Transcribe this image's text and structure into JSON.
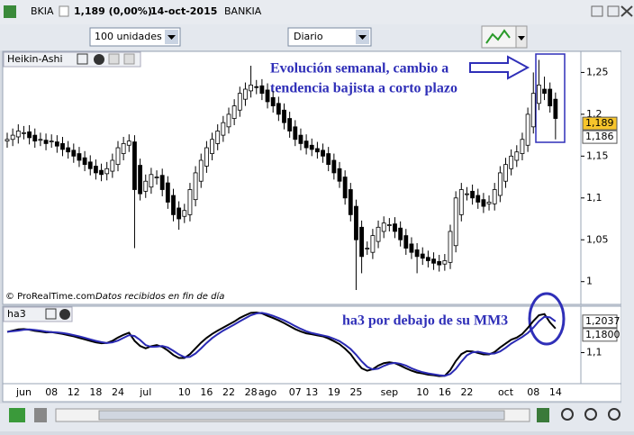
{
  "window": {
    "symbol": "BKIA",
    "quote": "1,189 (0,00%)",
    "date": "14-oct-2015",
    "name": "BANKIA",
    "quantity": "100 unidades",
    "period": "Diario"
  },
  "chart_data": [
    {
      "type": "candlestick",
      "title": "Heikin-Ashi",
      "source": "© ProRealTime.com",
      "note": "Datos recibidos en fin de día",
      "annotations": [
        "Evolución semanal, cambio a",
        "tendencia bajista a corto plazo"
      ],
      "categories": [
        null,
        null,
        null,
        "jun",
        null,
        null,
        null,
        null,
        "08",
        null,
        null,
        null,
        "12",
        null,
        null,
        null,
        "18",
        null,
        null,
        null,
        "24",
        null,
        null,
        null,
        null,
        "jul",
        null,
        null,
        null,
        null,
        null,
        null,
        "10",
        null,
        null,
        null,
        "16",
        null,
        null,
        null,
        "22",
        null,
        null,
        null,
        "28",
        null,
        null,
        "ago",
        null,
        null,
        null,
        null,
        "07",
        null,
        null,
        "13",
        null,
        null,
        null,
        "19",
        null,
        null,
        null,
        "25",
        null,
        null,
        null,
        null,
        null,
        "sep",
        null,
        null,
        null,
        null,
        null,
        "10",
        null,
        null,
        null,
        "16",
        null,
        null,
        null,
        "22",
        null,
        null,
        null,
        null,
        null,
        null,
        "oct",
        null,
        null,
        null,
        null,
        "08",
        null,
        null,
        null,
        "14"
      ],
      "open": [
        1.168,
        1.17,
        1.173,
        1.178,
        1.179,
        1.175,
        1.17,
        1.169,
        1.168,
        1.167,
        1.165,
        1.16,
        1.157,
        1.153,
        1.148,
        1.143,
        1.138,
        1.133,
        1.129,
        1.132,
        1.14,
        1.153,
        1.163,
        1.167,
        1.139,
        1.108,
        1.113,
        1.124,
        1.127,
        1.118,
        1.103,
        1.088,
        1.078,
        1.08,
        1.098,
        1.12,
        1.138,
        1.153,
        1.165,
        1.175,
        1.185,
        1.195,
        1.205,
        1.218,
        1.228,
        1.233,
        1.234,
        1.229,
        1.22,
        1.213,
        1.205,
        1.195,
        1.185,
        1.175,
        1.168,
        1.163,
        1.159,
        1.157,
        1.153,
        1.145,
        1.135,
        1.125,
        1.11,
        1.09,
        1.065,
        1.04,
        1.035,
        1.048,
        1.06,
        1.068,
        1.069,
        1.064,
        1.055,
        1.045,
        1.038,
        1.033,
        1.029,
        1.027,
        1.024,
        1.021,
        1.023,
        1.043,
        1.08,
        1.105,
        1.108,
        1.103,
        1.098,
        1.093,
        1.093,
        1.103,
        1.12,
        1.135,
        1.145,
        1.153,
        1.163,
        1.185,
        1.213,
        1.23,
        1.23,
        1.218
      ],
      "high": [
        1.178,
        1.183,
        1.188,
        1.186,
        1.187,
        1.183,
        1.178,
        1.177,
        1.176,
        1.175,
        1.173,
        1.168,
        1.165,
        1.161,
        1.156,
        1.151,
        1.146,
        1.141,
        1.143,
        1.153,
        1.168,
        1.173,
        1.176,
        1.175,
        1.147,
        1.128,
        1.136,
        1.133,
        1.135,
        1.126,
        1.111,
        1.096,
        1.093,
        1.118,
        1.138,
        1.153,
        1.168,
        1.178,
        1.188,
        1.198,
        1.208,
        1.218,
        1.233,
        1.238,
        1.258,
        1.241,
        1.242,
        1.237,
        1.228,
        1.221,
        1.213,
        1.203,
        1.193,
        1.183,
        1.176,
        1.171,
        1.167,
        1.165,
        1.161,
        1.153,
        1.143,
        1.133,
        1.118,
        1.098,
        1.073,
        1.048,
        1.063,
        1.073,
        1.078,
        1.076,
        1.077,
        1.072,
        1.063,
        1.053,
        1.046,
        1.041,
        1.037,
        1.035,
        1.032,
        1.033,
        1.068,
        1.108,
        1.118,
        1.113,
        1.116,
        1.111,
        1.106,
        1.103,
        1.118,
        1.138,
        1.148,
        1.158,
        1.163,
        1.178,
        1.208,
        1.25,
        1.265,
        1.245,
        1.238,
        1.226
      ],
      "low": [
        1.16,
        1.162,
        1.165,
        1.17,
        1.164,
        1.16,
        1.162,
        1.157,
        1.16,
        1.154,
        1.15,
        1.147,
        1.142,
        1.137,
        1.132,
        1.127,
        1.122,
        1.12,
        1.121,
        1.124,
        1.132,
        1.145,
        1.155,
        1.04,
        1.097,
        1.1,
        1.105,
        1.116,
        1.102,
        1.087,
        1.072,
        1.062,
        1.07,
        1.072,
        1.09,
        1.112,
        1.13,
        1.145,
        1.157,
        1.167,
        1.177,
        1.187,
        1.197,
        1.21,
        1.22,
        1.224,
        1.217,
        1.207,
        1.202,
        1.192,
        1.182,
        1.172,
        1.162,
        1.157,
        1.152,
        1.15,
        1.147,
        1.142,
        1.132,
        1.122,
        1.112,
        1.092,
        1.072,
        0.99,
        1.01,
        1.032,
        1.027,
        1.04,
        1.052,
        1.06,
        1.052,
        1.042,
        1.032,
        1.027,
        1.01,
        1.02,
        1.017,
        1.014,
        1.012,
        1.013,
        1.015,
        1.035,
        1.072,
        1.097,
        1.092,
        1.087,
        1.082,
        1.085,
        1.085,
        1.095,
        1.112,
        1.127,
        1.137,
        1.145,
        1.155,
        1.177,
        1.205,
        1.217,
        1.202,
        1.17
      ],
      "close": [
        1.17,
        1.175,
        1.18,
        1.178,
        1.172,
        1.168,
        1.17,
        1.165,
        1.168,
        1.162,
        1.158,
        1.155,
        1.15,
        1.145,
        1.14,
        1.135,
        1.13,
        1.128,
        1.135,
        1.145,
        1.16,
        1.165,
        1.168,
        1.11,
        1.105,
        1.12,
        1.128,
        1.125,
        1.11,
        1.095,
        1.08,
        1.075,
        1.085,
        1.11,
        1.13,
        1.145,
        1.16,
        1.17,
        1.18,
        1.19,
        1.2,
        1.21,
        1.225,
        1.23,
        1.235,
        1.232,
        1.225,
        1.215,
        1.21,
        1.2,
        1.19,
        1.18,
        1.17,
        1.165,
        1.16,
        1.158,
        1.155,
        1.15,
        1.14,
        1.13,
        1.12,
        1.1,
        1.08,
        1.05,
        1.03,
        1.04,
        1.055,
        1.065,
        1.07,
        1.068,
        1.06,
        1.05,
        1.04,
        1.035,
        1.03,
        1.028,
        1.025,
        1.022,
        1.02,
        1.025,
        1.06,
        1.1,
        1.11,
        1.105,
        1.1,
        1.095,
        1.09,
        1.095,
        1.11,
        1.13,
        1.14,
        1.15,
        1.155,
        1.17,
        1.2,
        1.225,
        1.235,
        1.225,
        1.21,
        1.195
      ],
      "up_color": "#ffffff",
      "down_color": "#000000",
      "ylim": [
        0.976,
        1.272
      ],
      "yticks": [
        {
          "value": 1.25,
          "label": "1,25"
        },
        {
          "value": 1.2,
          "label": "1,2"
        },
        {
          "value": 1.15,
          "label": "1,15"
        },
        {
          "value": 1.1,
          "label": "1,1"
        },
        {
          "value": 1.05,
          "label": "1,05"
        },
        1
      ],
      "price_markers": [
        {
          "value": 1.189,
          "label": "1,189",
          "color": "#f7c52b"
        },
        {
          "value": 1.186,
          "label": "1,186",
          "color": "#ffffff"
        }
      ]
    },
    {
      "type": "line",
      "title": "ha3",
      "annotations": [
        "ha3 por debajo de su MM3"
      ],
      "series": [
        {
          "color": "#000000",
          "values": [
            1.169,
            1.173,
            1.177,
            1.178,
            1.176,
            1.172,
            1.17,
            1.167,
            1.168,
            1.165,
            1.162,
            1.158,
            1.154,
            1.149,
            1.144,
            1.139,
            1.134,
            1.131,
            1.132,
            1.139,
            1.15,
            1.159,
            1.166,
            1.139,
            1.122,
            1.114,
            1.121,
            1.125,
            1.119,
            1.107,
            1.092,
            1.082,
            1.082,
            1.095,
            1.114,
            1.133,
            1.149,
            1.162,
            1.173,
            1.183,
            1.193,
            1.203,
            1.215,
            1.224,
            1.232,
            1.233,
            1.23,
            1.222,
            1.215,
            1.207,
            1.198,
            1.188,
            1.178,
            1.17,
            1.164,
            1.161,
            1.157,
            1.154,
            1.147,
            1.138,
            1.128,
            1.113,
            1.095,
            1.07,
            1.048,
            1.04,
            1.045,
            1.057,
            1.065,
            1.068,
            1.065,
            1.057,
            1.048,
            1.04,
            1.034,
            1.031,
            1.027,
            1.025,
            1.022,
            1.023,
            1.042,
            1.072,
            1.095,
            1.105,
            1.104,
            1.099,
            1.094,
            1.094,
            1.102,
            1.117,
            1.13,
            1.143,
            1.15,
            1.162,
            1.182,
            1.205,
            1.224,
            1.228,
            1.2,
            1.18
          ]
        },
        {
          "color": "#2a2ab4",
          "values": [
            1.169,
            1.171,
            1.173,
            1.176,
            1.177,
            1.175,
            1.173,
            1.17,
            1.168,
            1.167,
            1.165,
            1.162,
            1.158,
            1.154,
            1.149,
            1.144,
            1.139,
            1.135,
            1.132,
            1.134,
            1.14,
            1.149,
            1.158,
            1.155,
            1.142,
            1.125,
            1.119,
            1.12,
            1.122,
            1.117,
            1.106,
            1.094,
            1.085,
            1.086,
            1.097,
            1.114,
            1.132,
            1.148,
            1.161,
            1.173,
            1.183,
            1.193,
            1.204,
            1.214,
            1.224,
            1.23,
            1.232,
            1.228,
            1.222,
            1.215,
            1.207,
            1.198,
            1.188,
            1.179,
            1.171,
            1.165,
            1.161,
            1.157,
            1.153,
            1.146,
            1.138,
            1.126,
            1.112,
            1.093,
            1.071,
            1.053,
            1.044,
            1.047,
            1.056,
            1.063,
            1.066,
            1.063,
            1.057,
            1.048,
            1.041,
            1.035,
            1.031,
            1.028,
            1.025,
            1.023,
            1.029,
            1.046,
            1.07,
            1.091,
            1.101,
            1.103,
            1.099,
            1.096,
            1.097,
            1.104,
            1.116,
            1.13,
            1.141,
            1.152,
            1.165,
            1.183,
            1.204,
            1.219,
            1.217,
            1.2037
          ]
        }
      ],
      "ylim": [
        1.0,
        1.245
      ],
      "yticks": [
        {
          "value": 1.1,
          "label": "1,1"
        }
      ],
      "line_markers": [
        {
          "value": 1.2037,
          "label": "1,2037",
          "color": "#ffffff"
        },
        {
          "value": 1.18,
          "label": "1,1800",
          "color": "#ffffff"
        }
      ]
    }
  ]
}
